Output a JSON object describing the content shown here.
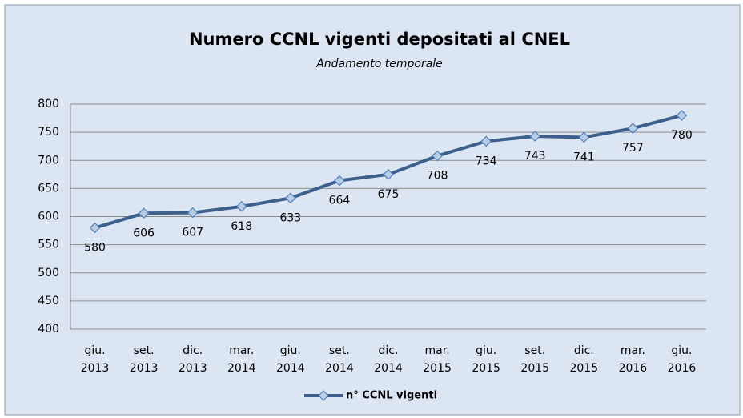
{
  "chart_data": {
    "type": "line",
    "title": "Numero CCNL vigenti depositati al CNEL",
    "subtitle": "Andamento temporale",
    "categories": [
      "giu. 2013",
      "set. 2013",
      "dic. 2013",
      "mar. 2014",
      "giu. 2014",
      "set. 2014",
      "dic. 2014",
      "mar. 2015",
      "giu. 2015",
      "set. 2015",
      "dic. 2015",
      "mar. 2016",
      "giu. 2016"
    ],
    "series": [
      {
        "name": "n° CCNL vigenti",
        "color": "#3c5f8c",
        "values": [
          580,
          606,
          607,
          618,
          633,
          664,
          675,
          708,
          734,
          743,
          741,
          757,
          780
        ],
        "value_label_colors": [
          "#c0272d",
          "#000000",
          "#000000",
          "#000000",
          "#c0272d",
          "#000000",
          "#000000",
          "#000000",
          "#c0272d",
          "#000000",
          "#000000",
          "#000000",
          "#c0272d"
        ]
      }
    ],
    "ylim": [
      400,
      800
    ],
    "yticks": [
      400,
      450,
      500,
      550,
      600,
      650,
      700,
      750,
      800
    ],
    "grid": true,
    "legend": "bottom"
  }
}
